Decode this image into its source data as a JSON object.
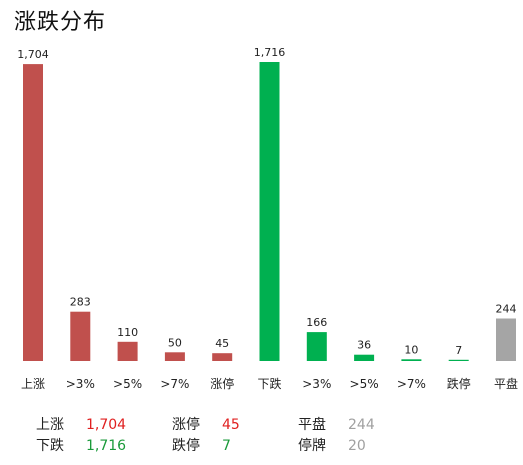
{
  "title": "涨跌分布",
  "colors": {
    "up": "#c0504d",
    "down": "#00b050",
    "flat": "#a5a5a5",
    "up_text": "#e02020",
    "down_text": "#1a9a3a",
    "flat_text": "#a0a0a0"
  },
  "chart_data": {
    "type": "bar",
    "categories": [
      "上涨",
      ">3%",
      ">5%",
      ">7%",
      "涨停",
      "下跌",
      ">3%",
      ">5%",
      ">7%",
      "跌停",
      "平盘"
    ],
    "values": [
      1704,
      283,
      110,
      50,
      45,
      1716,
      166,
      36,
      10,
      7,
      244
    ],
    "value_labels": [
      "1,704",
      "283",
      "110",
      "50",
      "45",
      "1,716",
      "166",
      "36",
      "10",
      "7",
      "244"
    ],
    "groups": [
      "up",
      "up",
      "up",
      "up",
      "up",
      "down",
      "down",
      "down",
      "down",
      "down",
      "flat"
    ],
    "title": "涨跌分布",
    "xlabel": "",
    "ylabel": "",
    "ylim": [
      0,
      1716
    ],
    "grid": false
  },
  "stats": [
    {
      "label": "上涨",
      "value": "1,704",
      "color": "up_text"
    },
    {
      "label": "涨停",
      "value": "45",
      "color": "up_text"
    },
    {
      "label": "平盘",
      "value": "244",
      "color": "flat_text"
    },
    {
      "label": "下跌",
      "value": "1,716",
      "color": "down_text"
    },
    {
      "label": "跌停",
      "value": "7",
      "color": "down_text"
    },
    {
      "label": "停牌",
      "value": "20",
      "color": "flat_text"
    }
  ]
}
